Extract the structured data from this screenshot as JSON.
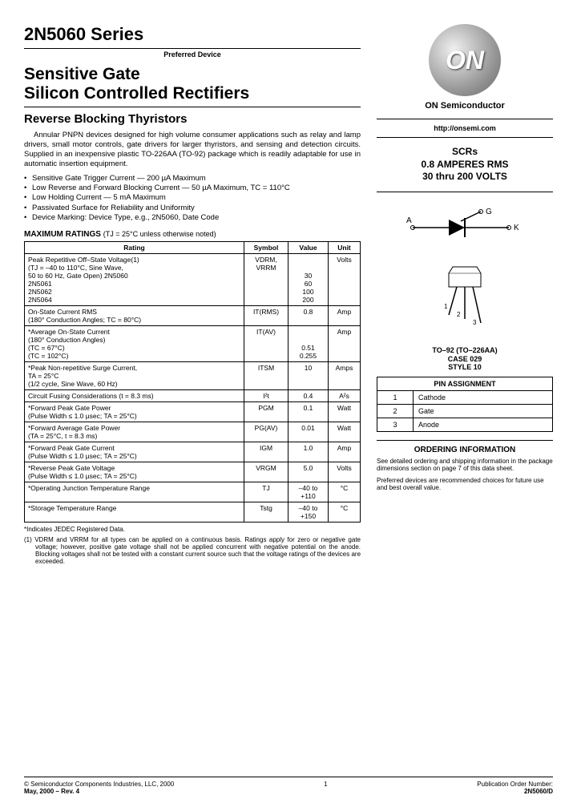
{
  "header": {
    "series": "2N5060 Series",
    "preferred": "Preferred Device",
    "title_line1": "Sensitive Gate",
    "title_line2": "Silicon Controlled Rectifiers",
    "subtitle": "Reverse Blocking Thyristors"
  },
  "intro": "Annular PNPN devices designed for high volume consumer applications such as relay and lamp drivers, small motor controls, gate drivers for larger thyristors, and sensing and detection circuits. Supplied in an inexpensive plastic TO-226AA (TO-92) package which is readily adaptable for use in automatic insertion equipment.",
  "bullets": [
    "Sensitive Gate Trigger Current — 200 µA Maximum",
    "Low Reverse and Forward Blocking Current — 50 µA Maximum, TC = 110°C",
    "Low Holding Current — 5 mA Maximum",
    "Passivated Surface for Reliability and Uniformity",
    "Device Marking: Device Type, e.g., 2N5060, Date Code"
  ],
  "ratings_title": "MAXIMUM RATINGS",
  "ratings_note": "(TJ = 25°C unless otherwise noted)",
  "ratings_cols": [
    "Rating",
    "Symbol",
    "Value",
    "Unit"
  ],
  "ratings": [
    {
      "rating": "Peak Repetitive Off–State Voltage(1)\n(TJ = –40 to 110°C, Sine Wave,\n50 to 60 Hz, Gate Open)    2N5060\n                                           2N5061\n                                           2N5062\n                                           2N5064",
      "symbol": "VDRM,\nVRRM",
      "value": "\n\n30\n60\n100\n200",
      "unit": "Volts"
    },
    {
      "rating": "On-State Current RMS\n(180° Conduction Angles; TC = 80°C)",
      "symbol": "IT(RMS)",
      "value": "0.8",
      "unit": "Amp"
    },
    {
      "rating": "*Average On-State Current\n(180° Conduction Angles)\n(TC = 67°C)\n(TC = 102°C)",
      "symbol": "IT(AV)",
      "value": "\n\n0.51\n0.255",
      "unit": "Amp"
    },
    {
      "rating": "*Peak Non-repetitive Surge Current,\nTA = 25°C\n(1/2 cycle, Sine Wave, 60 Hz)",
      "symbol": "ITSM",
      "value": "10",
      "unit": "Amps"
    },
    {
      "rating": "Circuit Fusing Considerations (t = 8.3 ms)",
      "symbol": "I²t",
      "value": "0.4",
      "unit": "A²s"
    },
    {
      "rating": "*Forward Peak Gate Power\n(Pulse Width ≤ 1.0 µsec; TA = 25°C)",
      "symbol": "PGM",
      "value": "0.1",
      "unit": "Watt"
    },
    {
      "rating": "*Forward Average Gate Power\n(TA = 25°C, t = 8.3 ms)",
      "symbol": "PG(AV)",
      "value": "0.01",
      "unit": "Watt"
    },
    {
      "rating": "*Forward Peak Gate Current\n(Pulse Width ≤ 1.0 µsec; TA = 25°C)",
      "symbol": "IGM",
      "value": "1.0",
      "unit": "Amp"
    },
    {
      "rating": "*Reverse Peak Gate Voltage\n(Pulse Width ≤ 1.0 µsec; TA = 25°C)",
      "symbol": "VRGM",
      "value": "5.0",
      "unit": "Volts"
    },
    {
      "rating": "*Operating Junction Temperature Range",
      "symbol": "TJ",
      "value": "–40 to\n+110",
      "unit": "°C"
    },
    {
      "rating": "*Storage Temperature Range",
      "symbol": "Tstg",
      "value": "–40 to\n+150",
      "unit": "°C"
    }
  ],
  "footnote_star": "*Indicates JEDEC Registered Data.",
  "footnote1": "(1) VDRM and VRRM for all types can be applied on a continuous basis. Ratings apply for zero or negative gate voltage; however, positive gate voltage shall not be applied concurrent with negative potential on the anode. Blocking voltages shall not be tested with a constant current source such that the voltage ratings of the devices are exceeded.",
  "logo": {
    "text": "ON",
    "label": "ON Semiconductor",
    "url": "http://onsemi.com"
  },
  "summary": {
    "line1": "SCRs",
    "line2": "0.8 AMPERES RMS",
    "line3": "30 thru 200 VOLTS"
  },
  "diagram": {
    "a": "A",
    "k": "K",
    "g": "G"
  },
  "package": {
    "line1": "TO–92 (TO–226AA)",
    "line2": "CASE 029",
    "line3": "STYLE 10"
  },
  "pin_header": "PIN ASSIGNMENT",
  "pins": [
    {
      "n": "1",
      "name": "Cathode"
    },
    {
      "n": "2",
      "name": "Gate"
    },
    {
      "n": "3",
      "name": "Anode"
    }
  ],
  "ordering": {
    "header": "ORDERING INFORMATION",
    "text": "See detailed ordering and shipping information in the package dimensions section on page 7 of this data sheet.",
    "preferred": "Preferred devices are recommended choices for future use and best overall value."
  },
  "footer": {
    "copyright": "© Semiconductor Components Industries, LLC, 2000",
    "date": "May, 2000 – Rev. 4",
    "page": "1",
    "pub_label": "Publication Order Number:",
    "pub": "2N5060/D"
  }
}
